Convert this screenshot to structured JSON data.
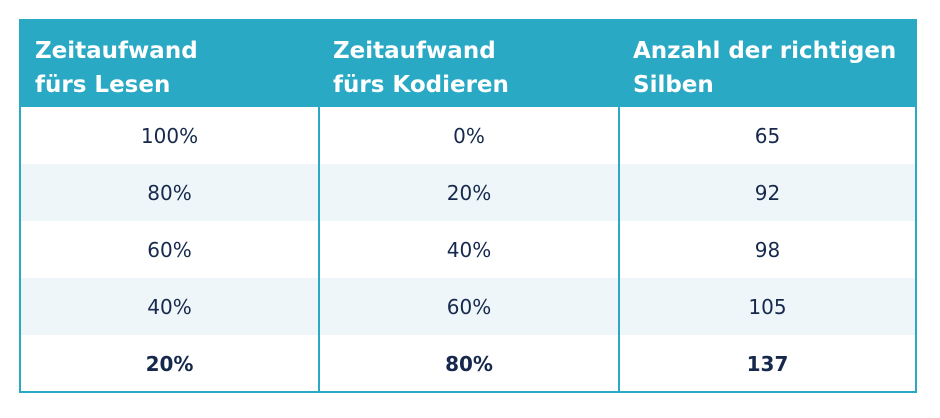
{
  "table": {
    "headers": [
      {
        "line1": "Zeitaufwand",
        "line2": "fürs Lesen"
      },
      {
        "line1": "Zeitaufwand",
        "line2": "fürs Kodieren"
      },
      {
        "line1": "Anzahl der richtigen",
        "line2": "Silben"
      }
    ],
    "rows": [
      {
        "lesen": "100%",
        "kodieren": "0%",
        "silben": "65"
      },
      {
        "lesen": "80%",
        "kodieren": "20%",
        "silben": "92"
      },
      {
        "lesen": "60%",
        "kodieren": "40%",
        "silben": "98"
      },
      {
        "lesen": "40%",
        "kodieren": "60%",
        "silben": "105"
      },
      {
        "lesen": "20%",
        "kodieren": "80%",
        "silben": "137"
      }
    ]
  },
  "colors": {
    "header_bg": "#2aa9c4",
    "header_text": "#ffffff",
    "cell_text": "#16294d",
    "alt_row_bg": "#eff6f9"
  }
}
